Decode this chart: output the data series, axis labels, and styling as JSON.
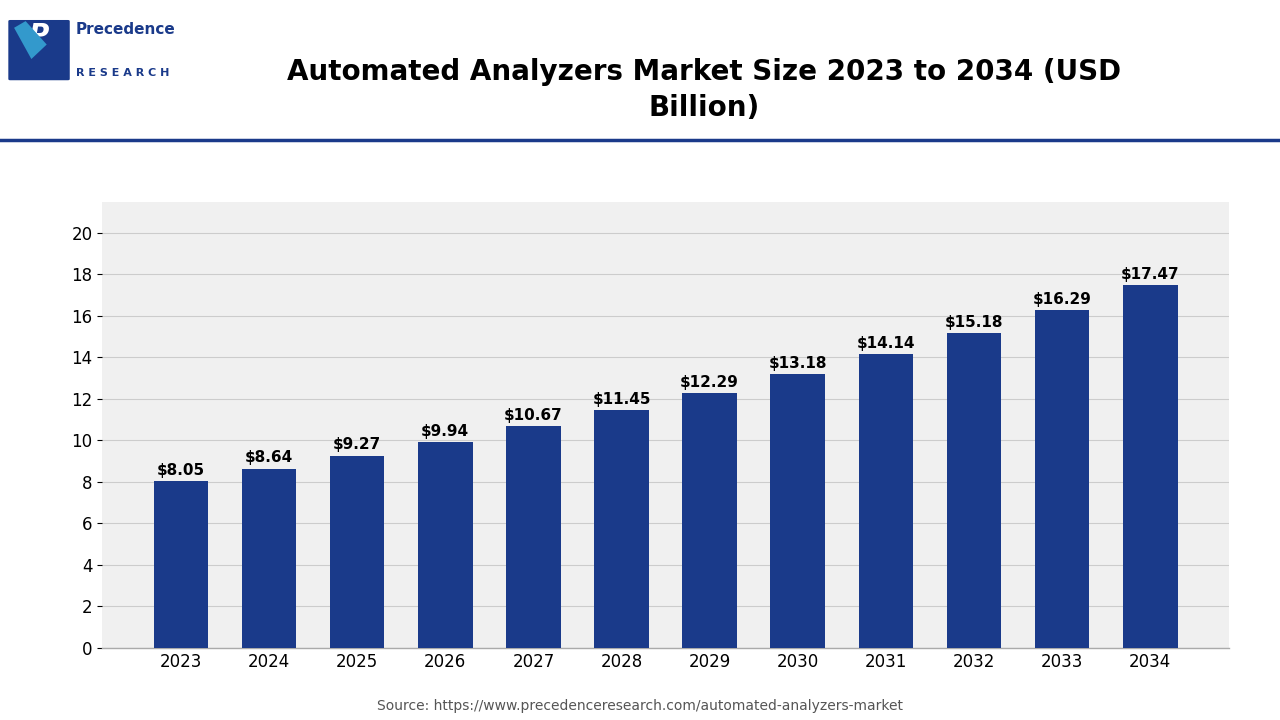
{
  "title": "Automated Analyzers Market Size 2023 to 2034 (USD\nBillion)",
  "years": [
    2023,
    2024,
    2025,
    2026,
    2027,
    2028,
    2029,
    2030,
    2031,
    2032,
    2033,
    2034
  ],
  "values": [
    8.05,
    8.64,
    9.27,
    9.94,
    10.67,
    11.45,
    12.29,
    13.18,
    14.14,
    15.18,
    16.29,
    17.47
  ],
  "labels": [
    "$8.05",
    "$8.64",
    "$9.27",
    "$9.94",
    "$10.67",
    "$11.45",
    "$12.29",
    "$13.18",
    "$14.14",
    "$15.18",
    "$16.29",
    "$17.47"
  ],
  "bar_color": "#1a3a8a",
  "background_color": "#ffffff",
  "plot_bg_color": "#f0f0f0",
  "yticks": [
    0,
    2,
    4,
    6,
    8,
    10,
    12,
    14,
    16,
    18,
    20
  ],
  "ylim": [
    0,
    21.5
  ],
  "source_text": "Source: https://www.precedenceresearch.com/automated-analyzers-market",
  "title_fontsize": 20,
  "label_fontsize": 11,
  "tick_fontsize": 12,
  "source_fontsize": 10,
  "grid_color": "#cccccc",
  "grid_alpha": 1.0,
  "header_line_color": "#1a3a8a",
  "logo_dark_blue": "#1a3a8a",
  "logo_light_blue": "#3399cc"
}
